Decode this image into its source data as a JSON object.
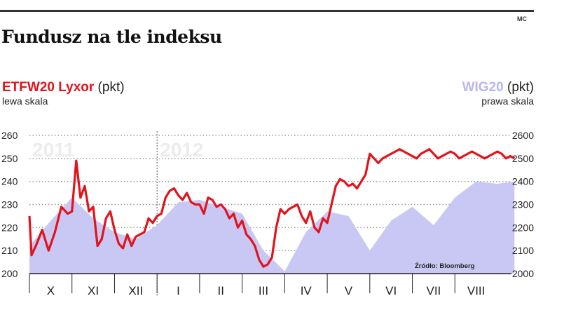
{
  "header": {
    "title": "Fundusz na tle indeksu",
    "credit": "MC",
    "left_series_name": "ETFW20 Lyxor",
    "left_unit": "(pkt)",
    "left_scale": "lewa skala",
    "right_series_name": "WIG20",
    "right_unit": "(pkt)",
    "right_scale": "prawa skala",
    "source": "Źródło: Bloomberg"
  },
  "colors": {
    "line": "#e2131b",
    "area": "#c9c8f5",
    "grid": "#9a9a9a",
    "axis": "#222222"
  },
  "chart_data": {
    "type": "line",
    "left_axis": {
      "label": "ETFW20 Lyxor (pkt)",
      "range": [
        200,
        260
      ],
      "ticks": [
        200,
        210,
        220,
        230,
        240,
        250,
        260
      ]
    },
    "right_axis": {
      "label": "WIG20 (pkt)",
      "range": [
        2000,
        2600
      ],
      "ticks": [
        2000,
        2100,
        2200,
        2300,
        2400,
        2500,
        2600
      ]
    },
    "x_axis": {
      "months": [
        "X",
        "XI",
        "XII",
        "I",
        "II",
        "III",
        "IV",
        "V",
        "VI",
        "VII",
        "VIII"
      ],
      "year_labels": [
        {
          "text": "2011",
          "month_index": 0
        },
        {
          "text": "2012",
          "month_index": 3
        }
      ],
      "year_divider_before_month": 3
    },
    "series": [
      {
        "name": "ETFW20 Lyxor",
        "axis": "left",
        "x": [
          0,
          0.05,
          0.15,
          0.3,
          0.45,
          0.6,
          0.75,
          0.9,
          1.0,
          1.1,
          1.2,
          1.3,
          1.4,
          1.5,
          1.6,
          1.7,
          1.8,
          1.9,
          2.0,
          2.1,
          2.2,
          2.3,
          2.4,
          2.5,
          2.6,
          2.7,
          2.8,
          2.9,
          3.0,
          3.1,
          3.2,
          3.3,
          3.4,
          3.5,
          3.6,
          3.7,
          3.8,
          3.9,
          4.0,
          4.1,
          4.2,
          4.3,
          4.4,
          4.5,
          4.6,
          4.7,
          4.8,
          4.9,
          5.0,
          5.1,
          5.2,
          5.3,
          5.4,
          5.5,
          5.6,
          5.7,
          5.8,
          5.9,
          6.0,
          6.1,
          6.2,
          6.3,
          6.4,
          6.5,
          6.6,
          6.7,
          6.8,
          6.9,
          7.0,
          7.1,
          7.2,
          7.3,
          7.4,
          7.5,
          7.6,
          7.7,
          7.8,
          7.9,
          8.0,
          8.1,
          8.2,
          8.3,
          8.4,
          8.5,
          8.6,
          8.7,
          8.8,
          8.9,
          9.0,
          9.1,
          9.2,
          9.3,
          9.4,
          9.5,
          9.6,
          9.7,
          9.8,
          9.9,
          10.0,
          10.1,
          10.2,
          10.3,
          10.4,
          10.5,
          10.6,
          10.7,
          10.8,
          10.9,
          11.0,
          11.1,
          11.2,
          11.3,
          11.4
        ],
        "values": [
          225,
          208,
          212,
          219,
          210,
          218,
          229,
          226,
          227,
          249,
          233,
          238,
          227,
          229,
          212,
          215,
          224,
          227,
          219,
          213,
          211,
          217,
          212,
          216,
          217,
          218,
          224,
          222,
          225,
          226,
          233,
          236,
          237,
          234,
          232,
          235,
          231,
          230,
          230,
          226,
          233,
          232,
          229,
          230,
          228,
          224,
          226,
          220,
          223,
          217,
          215,
          212,
          206,
          203,
          204,
          207,
          220,
          228,
          226,
          228,
          229,
          230,
          225,
          222,
          227,
          220,
          218,
          224,
          222,
          230,
          238,
          241,
          240,
          238,
          239,
          237,
          240,
          243,
          252,
          250,
          248,
          250,
          251,
          252,
          253,
          254,
          253,
          252,
          251,
          250,
          252,
          253,
          254,
          252,
          250,
          251,
          252,
          253,
          252,
          250,
          251,
          252,
          253,
          252,
          251,
          250,
          251,
          252,
          253,
          252,
          250,
          251,
          250
        ]
      },
      {
        "name": "WIG20",
        "axis": "right",
        "x": [
          0,
          0.5,
          1.0,
          1.5,
          2.0,
          2.5,
          3.0,
          3.5,
          4.0,
          4.5,
          5.0,
          5.5,
          6.0,
          6.5,
          7.0,
          7.5,
          8.0,
          8.5,
          9.0,
          9.5,
          10.0,
          10.5,
          11.0,
          11.4
        ],
        "values": [
          2120,
          2230,
          2330,
          2240,
          2180,
          2150,
          2210,
          2310,
          2320,
          2290,
          2260,
          2100,
          2010,
          2180,
          2270,
          2250,
          2100,
          2230,
          2290,
          2210,
          2330,
          2400,
          2390,
          2400
        ]
      }
    ]
  }
}
